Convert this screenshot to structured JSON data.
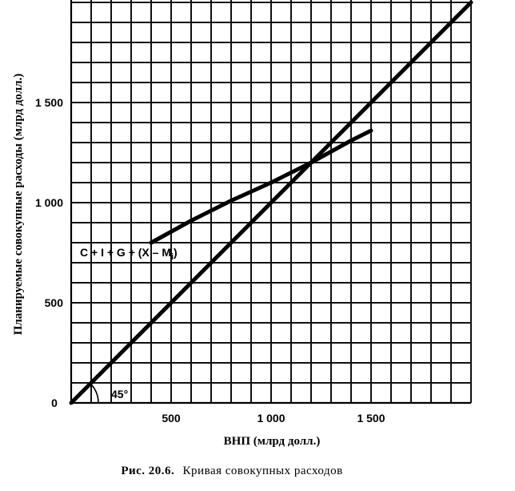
{
  "chart_data": {
    "type": "line",
    "title": "",
    "xlabel": "ВНП (млрд долл.)",
    "ylabel": "Планируемые совокупные расходы (млрд долл.)",
    "xlim": [
      0,
      2000
    ],
    "ylim": [
      0,
      2000
    ],
    "grid": true,
    "x_ticks": [
      {
        "value": 500,
        "label": "500"
      },
      {
        "value": 1000,
        "label": "1 000"
      },
      {
        "value": 1500,
        "label": "1 500"
      }
    ],
    "y_ticks": [
      {
        "value": 0,
        "label": "0"
      },
      {
        "value": 500,
        "label": "500"
      },
      {
        "value": 1000,
        "label": "1 000"
      },
      {
        "value": 1500,
        "label": "1 500"
      }
    ],
    "series": [
      {
        "x": [
          0,
          2000
        ],
        "y": [
          0,
          2000
        ]
      },
      {
        "x": [
          400,
          600,
          800,
          1000,
          1200,
          1400,
          1500
        ],
        "y": [
          800,
          910,
          1010,
          1100,
          1200,
          1310,
          1360
        ]
      }
    ],
    "annotations": [
      {
        "text": "C + I + G + (X – M",
        "sub": "i",
        "close": ")"
      },
      {
        "text": "45°"
      }
    ]
  },
  "caption": {
    "prefix": "Рис. 20.6.",
    "text": "Кривая совокупных расходов"
  }
}
